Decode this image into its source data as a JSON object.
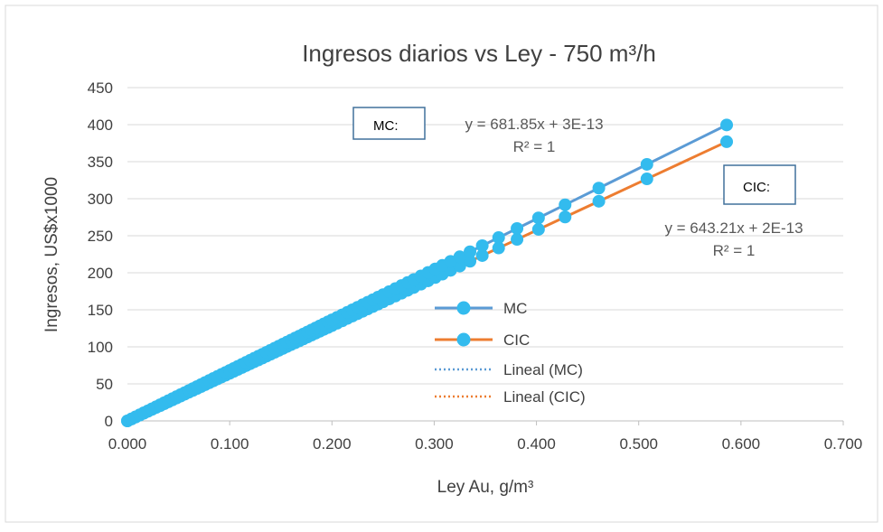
{
  "chart_data": {
    "type": "scatter",
    "title": "Ingresos diarios vs Ley - 750 m³/h",
    "xlabel": "Ley Au, g/m³",
    "ylabel": "Ingresos, US$x1000",
    "xlim": [
      0,
      0.7
    ],
    "ylim": [
      0,
      450
    ],
    "x_ticks": [
      "0.000",
      "0.100",
      "0.200",
      "0.300",
      "0.400",
      "0.500",
      "0.600",
      "0.700"
    ],
    "y_ticks": [
      "0",
      "50",
      "100",
      "150",
      "200",
      "250",
      "300",
      "350",
      "400",
      "450"
    ],
    "grid": "horizontal",
    "colors": {
      "MC": "#33bbee",
      "MC_line": "#5b9bd5",
      "CIC": "#ed7d31",
      "CIC_marker": "#33bbee",
      "grid": "#d9d9d9",
      "text": "#404040",
      "textbox_border": "#41719c"
    },
    "x": [
      0.0,
      0.004,
      0.008,
      0.012,
      0.016,
      0.02,
      0.024,
      0.028,
      0.032,
      0.036,
      0.04,
      0.044,
      0.048,
      0.052,
      0.056,
      0.06,
      0.064,
      0.068,
      0.072,
      0.076,
      0.08,
      0.084,
      0.088,
      0.092,
      0.096,
      0.1,
      0.104,
      0.108,
      0.112,
      0.116,
      0.12,
      0.124,
      0.128,
      0.132,
      0.136,
      0.14,
      0.144,
      0.148,
      0.152,
      0.156,
      0.16,
      0.164,
      0.168,
      0.172,
      0.176,
      0.18,
      0.184,
      0.188,
      0.192,
      0.196,
      0.2,
      0.205,
      0.21,
      0.215,
      0.22,
      0.225,
      0.23,
      0.235,
      0.24,
      0.245,
      0.25,
      0.256,
      0.262,
      0.268,
      0.274,
      0.28,
      0.287,
      0.294,
      0.301,
      0.308,
      0.316,
      0.325,
      0.335,
      0.347,
      0.363,
      0.381,
      0.402,
      0.428,
      0.461,
      0.508,
      0.586
    ],
    "series": [
      {
        "name": "MC",
        "values": [
          0.0,
          2.73,
          5.45,
          8.18,
          10.91,
          13.64,
          16.36,
          19.09,
          21.82,
          24.55,
          27.27,
          30.0,
          32.73,
          35.46,
          38.18,
          40.91,
          43.64,
          46.37,
          49.09,
          51.82,
          54.55,
          57.28,
          60.0,
          62.73,
          65.46,
          68.19,
          70.91,
          73.64,
          76.37,
          79.09,
          81.82,
          84.55,
          87.28,
          90.0,
          92.73,
          95.46,
          98.19,
          100.91,
          103.64,
          106.37,
          109.1,
          111.82,
          114.55,
          117.28,
          120.01,
          122.73,
          125.46,
          128.19,
          130.92,
          133.64,
          136.37,
          139.78,
          143.19,
          146.6,
          150.01,
          153.42,
          156.83,
          160.23,
          163.64,
          167.05,
          170.46,
          174.55,
          178.64,
          182.74,
          186.83,
          190.92,
          195.69,
          200.46,
          205.24,
          210.01,
          215.46,
          221.6,
          228.42,
          236.6,
          247.51,
          259.79,
          274.1,
          291.83,
          314.33,
          346.38,
          399.56
        ]
      },
      {
        "name": "CIC",
        "values": [
          0.0,
          2.57,
          5.15,
          7.72,
          10.29,
          12.86,
          15.44,
          18.01,
          20.58,
          23.16,
          25.73,
          28.3,
          30.87,
          33.45,
          36.02,
          38.59,
          41.17,
          43.74,
          46.31,
          48.88,
          51.46,
          54.03,
          56.6,
          59.18,
          61.75,
          64.32,
          66.89,
          69.47,
          72.04,
          74.61,
          77.19,
          79.76,
          82.33,
          84.9,
          87.48,
          90.05,
          92.62,
          95.2,
          97.77,
          100.34,
          102.91,
          105.49,
          108.06,
          110.63,
          113.2,
          115.78,
          118.35,
          120.92,
          123.5,
          126.07,
          128.64,
          131.86,
          135.07,
          138.29,
          141.51,
          144.72,
          147.94,
          151.15,
          154.37,
          157.59,
          160.8,
          164.66,
          168.52,
          172.38,
          176.24,
          180.1,
          184.6,
          189.1,
          193.61,
          198.11,
          203.25,
          209.04,
          215.48,
          223.19,
          233.48,
          245.06,
          258.57,
          275.29,
          296.52,
          326.75,
          376.92
        ]
      }
    ],
    "legend": {
      "position": "center",
      "entries": [
        "MC",
        "CIC",
        "Lineal (MC)",
        "Lineal (CIC)"
      ]
    },
    "annotations": {
      "mc_box_label": "MC:",
      "mc_equation": "y = 681.85x + 3E-13",
      "mc_r2": "R² = 1",
      "cic_box_label": "CIC:",
      "cic_equation": "y = 643.21x + 2E-13",
      "cic_r2": "R² = 1"
    }
  }
}
